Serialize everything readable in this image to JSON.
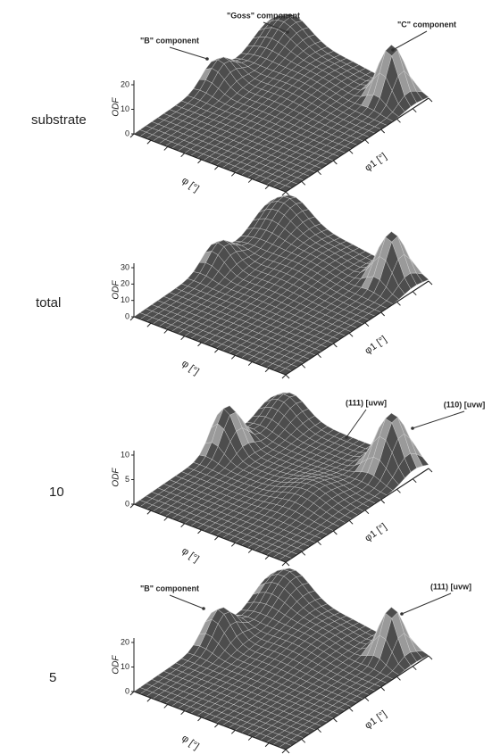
{
  "panels": [
    {
      "label": "substrate",
      "z_axis_label": "ODF",
      "z_ticks": [
        "0",
        "10",
        "20"
      ],
      "x_axis_label": "φ [°]",
      "y_axis_label": "φ1 [°]",
      "annotations": [
        "\"B\" component",
        "\"Goss\" component",
        "\"C\" component"
      ]
    },
    {
      "label": "total",
      "z_axis_label": "ODF",
      "z_ticks": [
        "0",
        "10",
        "20",
        "30"
      ],
      "x_axis_label": "φ [°]",
      "y_axis_label": "φ1 [°]"
    },
    {
      "label": "10",
      "z_axis_label": "ODF",
      "z_ticks": [
        "0",
        "5",
        "10"
      ],
      "x_axis_label": "φ [°]",
      "y_axis_label": "φ1 [°]",
      "annotations": [
        "(111) [uvw]",
        "(110) [uvw]"
      ]
    },
    {
      "label": "5",
      "z_axis_label": "ODF",
      "z_ticks": [
        "0",
        "10",
        "20"
      ],
      "x_axis_label": "φ [°]",
      "y_axis_label": "φ1 [°]",
      "annotations": [
        "\"B\" component",
        "(111) [uvw]"
      ]
    }
  ]
}
